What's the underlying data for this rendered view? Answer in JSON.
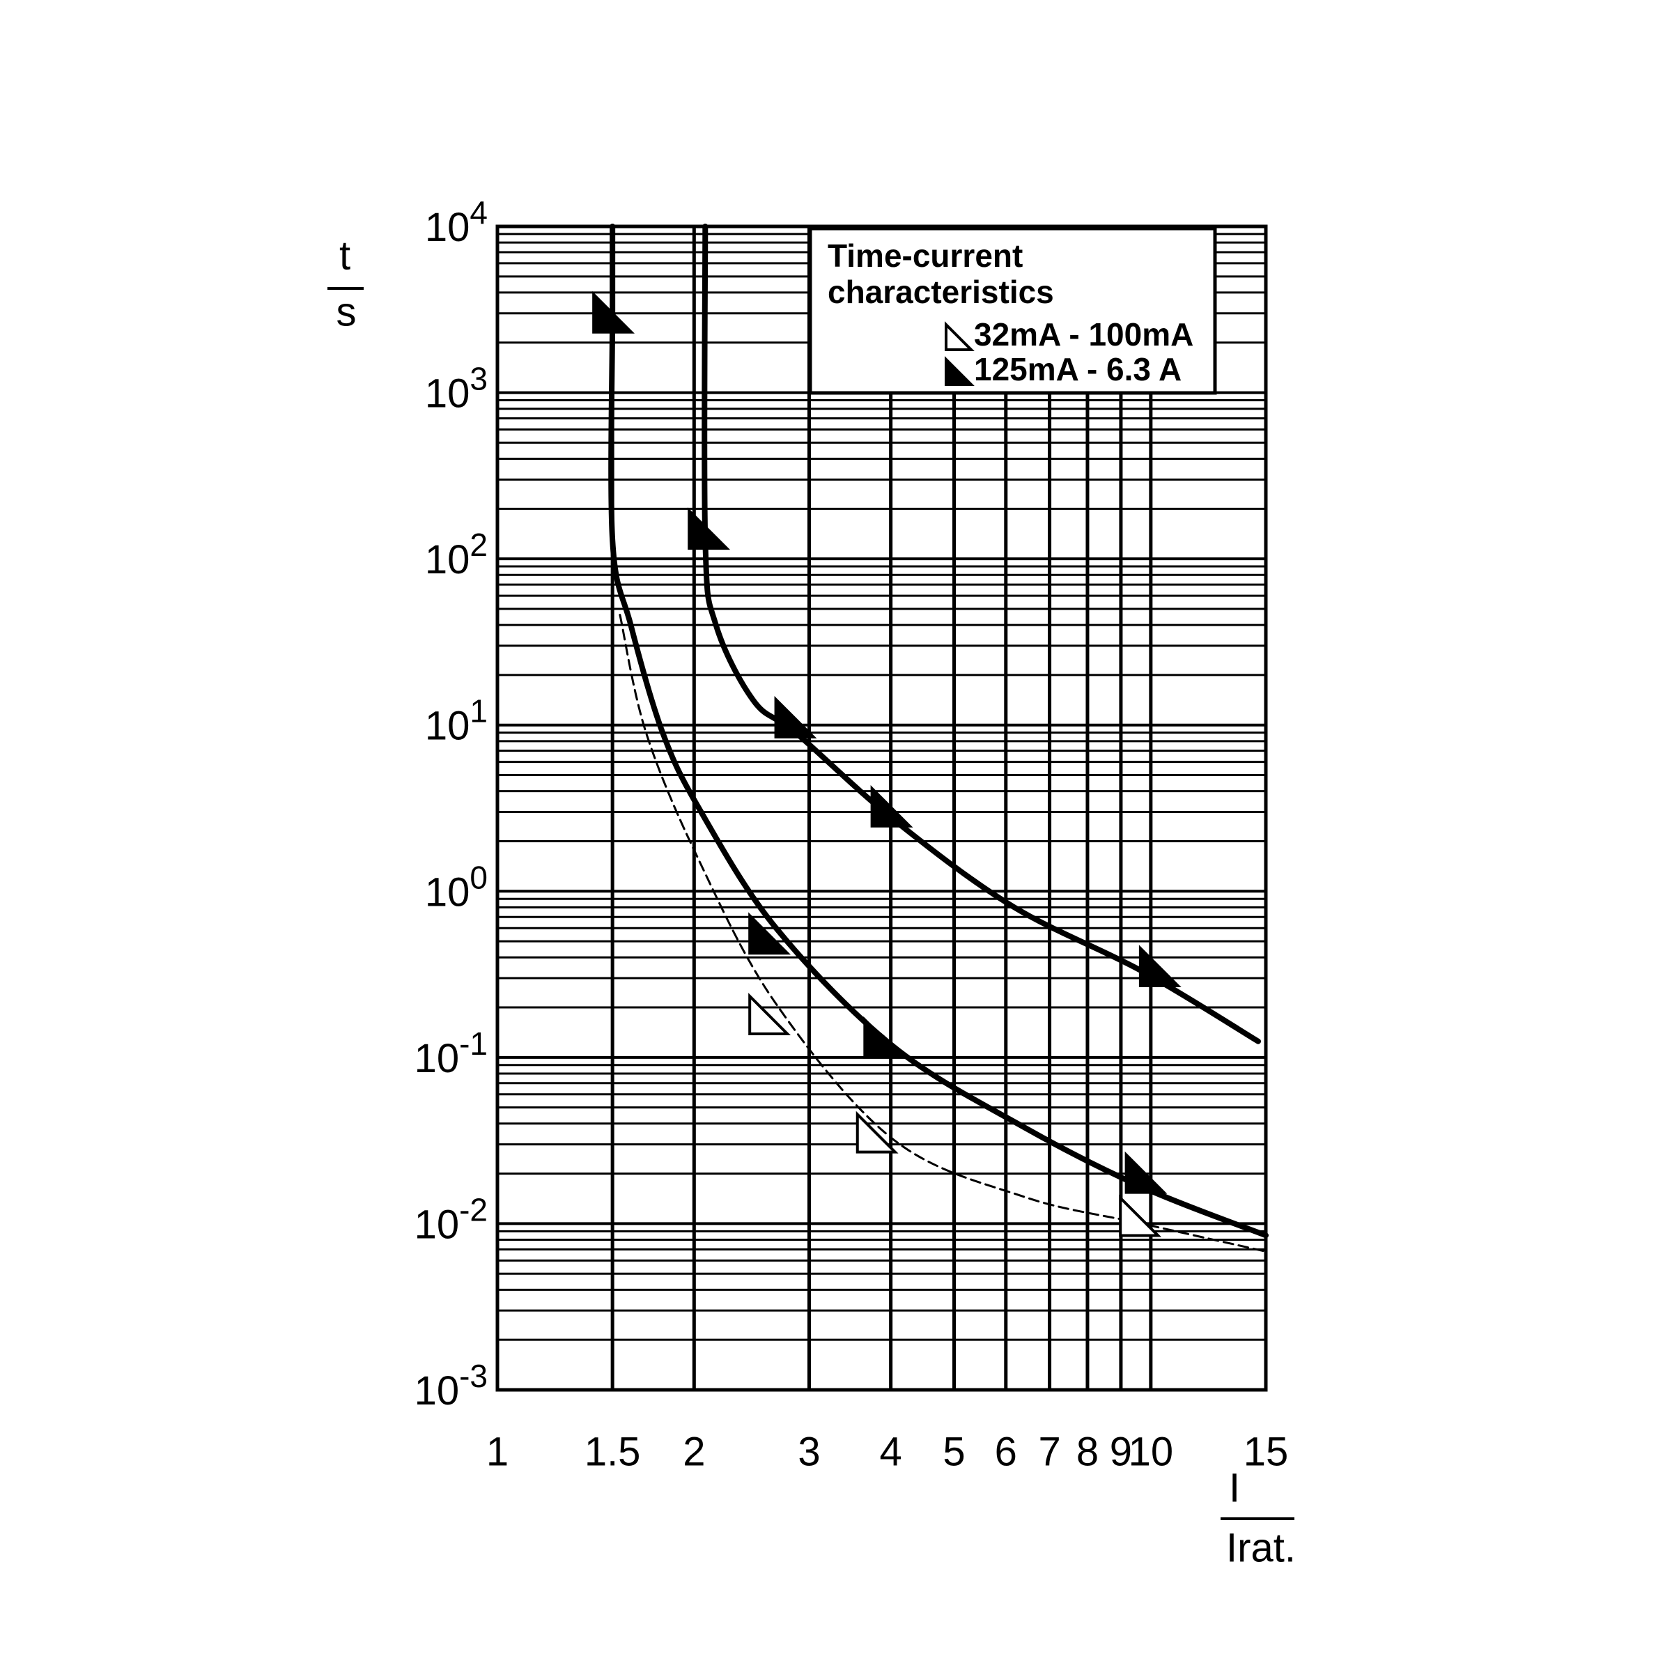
{
  "chart_data": {
    "type": "line",
    "xscale": "log",
    "yscale": "log",
    "grid": true,
    "xlim": [
      1,
      15
    ],
    "ylim": [
      0.001,
      10000
    ],
    "xticks": [
      1,
      1.5,
      2,
      3,
      4,
      5,
      6,
      7,
      8,
      9,
      10,
      15
    ],
    "yticks": [
      {
        "value": 0.001,
        "base": "10",
        "exponent": "-3"
      },
      {
        "value": 0.01,
        "base": "10",
        "exponent": "-2"
      },
      {
        "value": 0.1,
        "base": "10",
        "exponent": "-1"
      },
      {
        "value": 1,
        "base": "10",
        "exponent": "0"
      },
      {
        "value": 10,
        "base": "10",
        "exponent": "1"
      },
      {
        "value": 100,
        "base": "10",
        "exponent": "2"
      },
      {
        "value": 1000,
        "base": "10",
        "exponent": "3"
      },
      {
        "value": 10000,
        "base": "10",
        "exponent": "4"
      }
    ],
    "yminor_ticks": [
      0.002,
      0.003,
      0.004,
      0.005,
      0.006,
      0.007,
      0.008,
      0.009,
      0.02,
      0.03,
      0.04,
      0.05,
      0.06,
      0.07,
      0.08,
      0.09,
      0.2,
      0.3,
      0.4,
      0.5,
      0.6,
      0.7,
      0.8,
      0.9,
      2,
      3,
      4,
      5,
      6,
      7,
      8,
      9,
      20,
      30,
      40,
      50,
      60,
      70,
      80,
      90,
      200,
      300,
      400,
      500,
      600,
      700,
      800,
      900,
      2000,
      3000,
      4000,
      5000,
      6000,
      7000,
      8000,
      9000
    ],
    "ylabel": {
      "numerator": "t",
      "denominator": "s"
    },
    "xlabel": {
      "numerator": "I",
      "denominator": "Irat."
    },
    "legend": {
      "corner": "top-right",
      "title": [
        "Time-current",
        "characteristics"
      ],
      "entries": [
        {
          "label": "32mA - 100mA",
          "marker": "open"
        },
        {
          "label": "125mA - 6.3 A",
          "marker": "filled"
        }
      ]
    },
    "series": [
      {
        "color": "#000000",
        "style": "solid",
        "marker": "filled",
        "x": [
          1.5,
          1.5,
          1.5,
          1.6,
          1.79,
          2.04,
          2.67,
          4.04,
          6.4,
          9.7,
          15
        ],
        "values": [
          10000,
          3000,
          130,
          40,
          9,
          3.1,
          0.6,
          0.116,
          0.038,
          0.0166,
          0.0085
        ],
        "marker_x": [
          1.5,
          2.6,
          3.9,
          9.8
        ],
        "marker_values": [
          3000,
          0.55,
          0.13,
          0.02
        ]
      },
      {
        "color": "#000000",
        "style": "solid",
        "marker": "filled",
        "x": [
          2.08,
          2.08,
          2.16,
          2.47,
          2.87,
          4.04,
          6.15,
          9.7,
          14.6
        ],
        "values": [
          10000,
          130,
          40,
          13.9,
          8.9,
          2.7,
          0.81,
          0.33,
          0.125
        ],
        "marker_x": [
          2.1,
          2.85,
          4.0,
          10.3
        ],
        "marker_values": [
          150,
          11,
          3.2,
          0.35
        ]
      },
      {
        "color": "#000000",
        "style": "dashed",
        "marker": "open",
        "x": [
          1.54,
          1.69,
          2.04,
          2.67,
          4.04,
          6.4,
          9.7,
          15
        ],
        "values": [
          46,
          8.9,
          1.5,
          0.21,
          0.032,
          0.0145,
          0.01,
          0.0068
        ],
        "marker_x": [
          2.6,
          3.8,
          9.6
        ],
        "marker_values": [
          0.18,
          0.035,
          0.011
        ]
      }
    ]
  }
}
